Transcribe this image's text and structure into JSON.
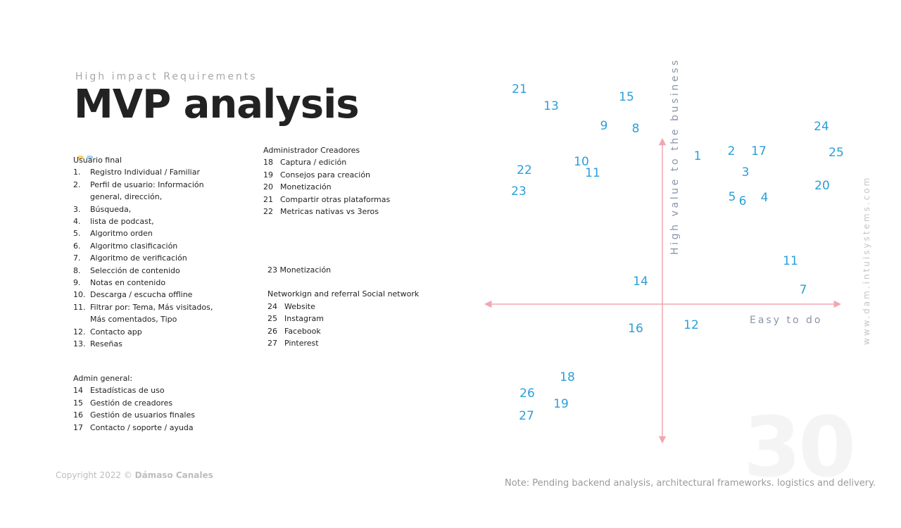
{
  "header": {
    "subtitle": "High impact Requirements",
    "title": "MVP analysis"
  },
  "colors": {
    "title": "#222222",
    "subtitle": "#a8a8a8",
    "point": "#2a9fd8",
    "axis": "#f0a8b0",
    "axis_label": "#8a93a8",
    "dot1": "#f6d27a",
    "dot2": "#9fd3f3"
  },
  "lists": {
    "usuario": {
      "heading": "Usuario final",
      "items": [
        {
          "num": "1.",
          "text": "Registro Individual / Familiar"
        },
        {
          "num": "2.",
          "text": "Perfil de usuario: Información general, dirección,"
        },
        {
          "num": "3.",
          "text": "Búsqueda,"
        },
        {
          "num": "4.",
          "text": " lista de podcast,"
        },
        {
          "num": "5.",
          "text": "Algoritmo orden"
        },
        {
          "num": "6.",
          "text": "Algoritmo clasificación"
        },
        {
          "num": "7.",
          "text": "Algoritmo de verificación"
        },
        {
          "num": "8.",
          "text": "Selección de contenido"
        },
        {
          "num": "9.",
          "text": "Notas en contenido"
        },
        {
          "num": "10.",
          "text": "Descarga / escucha offline"
        },
        {
          "num": "11.",
          "text": "Filtrar por:  Tema, Más visitados, Más comentados, Tipo"
        },
        {
          "num": "12.",
          "text": "Contacto app"
        },
        {
          "num": "13.",
          "text": "Reseñas"
        }
      ]
    },
    "creadores": {
      "heading": "Administrador Creadores",
      "items": [
        {
          "num": "18",
          "text": "Captura / edición"
        },
        {
          "num": "19",
          "text": "Consejos para creación"
        },
        {
          "num": "20",
          "text": "Monetización"
        },
        {
          "num": "21",
          "text": "Compartir otras plataformas"
        },
        {
          "num": "22",
          "text": "Metricas nativas vs 3eros"
        }
      ]
    },
    "social": {
      "monetizacion": "23 Monetización",
      "heading": "Networkign and referral Social network",
      "items": [
        {
          "num": "24",
          "text": "Website"
        },
        {
          "num": "25",
          "text": "Instagram"
        },
        {
          "num": "26",
          "text": "Facebook"
        },
        {
          "num": "27",
          "text": "Pinterest"
        }
      ]
    },
    "admin": {
      "heading": "Admin general:",
      "items": [
        {
          "num": "14",
          "text": "Estadísticas de uso"
        },
        {
          "num": "15",
          "text": "Gestión de creadores"
        },
        {
          "num": "16",
          "text": "Gestión de usuarios finales"
        },
        {
          "num": "17",
          "text": "Contacto / soporte / ayuda"
        }
      ]
    }
  },
  "matrix": {
    "y_axis_label": "High value to the business",
    "x_axis_label": "Easy to do",
    "points": [
      "21",
      "13",
      "15",
      "9",
      "8",
      "10",
      "11",
      "22",
      "23",
      "1",
      "2",
      "17",
      "24",
      "25",
      "3",
      "20",
      "5",
      "6",
      "4",
      "11",
      "7",
      "14",
      "16",
      "12",
      "18",
      "26",
      "19",
      "27"
    ]
  },
  "footer": {
    "copyright_prefix": "Copyright  2022 © ",
    "copyright_name": "Dámaso Canales",
    "note": "Note: Pending backend analysis, architectural frameworks. logistics and delivery.",
    "page_number": "30",
    "website": "www.dam.intuisystems.com"
  }
}
